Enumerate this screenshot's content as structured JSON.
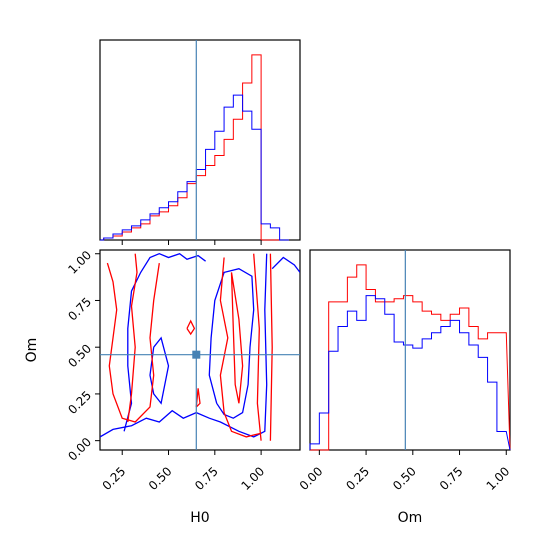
{
  "chart_data": [
    {
      "type": "histogram",
      "panel": "H0 marginal",
      "xlim": [
        0.13,
        1.21
      ],
      "truth": 0.65,
      "bins": [
        0.1,
        0.15,
        0.2,
        0.25,
        0.3,
        0.35,
        0.4,
        0.45,
        0.5,
        0.55,
        0.6,
        0.65,
        0.7,
        0.75,
        0.8,
        0.85,
        0.9,
        0.95,
        1.0,
        1.05,
        1.1,
        1.15
      ],
      "series": [
        {
          "color": "#ff0000",
          "values": [
            0,
            1,
            2,
            4,
            6,
            8,
            12,
            14,
            17,
            21,
            28,
            32,
            37,
            42,
            50,
            60,
            78,
            92,
            0,
            0,
            0
          ]
        },
        {
          "color": "#0000ff",
          "values": [
            0,
            1,
            3,
            5,
            7,
            10,
            13,
            16,
            19,
            24,
            29,
            35,
            45,
            54,
            66,
            72,
            64,
            55,
            8,
            6,
            0
          ]
        }
      ]
    },
    {
      "type": "contour",
      "panel": "H0 vs Om joint",
      "xlabel": "H0",
      "ylabel": "Om",
      "xlim": [
        0.13,
        1.21
      ],
      "ylim": [
        -0.05,
        1.02
      ],
      "xticks": [
        "0.25",
        "0.50",
        "0.75",
        "1.00"
      ],
      "yticks": [
        "0.00",
        "0.25",
        "0.50",
        "0.75",
        "1.00"
      ],
      "truth": [
        0.65,
        0.46
      ],
      "series": [
        {
          "color": "#0000ff",
          "contours": [
            [
              [
                0.13,
                0.02
              ],
              [
                0.2,
                0.06
              ],
              [
                0.3,
                0.08
              ],
              [
                0.38,
                0.12
              ],
              [
                0.45,
                0.1
              ],
              [
                0.52,
                0.16
              ],
              [
                0.58,
                0.12
              ],
              [
                0.65,
                0.15
              ],
              [
                0.72,
                0.12
              ],
              [
                0.78,
                0.1
              ],
              [
                0.88,
                0.05
              ],
              [
                0.96,
                0.02
              ],
              [
                1.02,
                0.05
              ],
              [
                1.03,
                0.3
              ],
              [
                1.02,
                0.7
              ],
              [
                1.03,
                1.0
              ]
            ],
            [
              [
                0.26,
                0.05
              ],
              [
                0.3,
                0.2
              ],
              [
                0.28,
                0.4
              ],
              [
                0.28,
                0.6
              ],
              [
                0.3,
                0.8
              ],
              [
                0.35,
                0.9
              ],
              [
                0.4,
                0.98
              ],
              [
                0.45,
                1.0
              ],
              [
                0.5,
                0.98
              ],
              [
                0.56,
                1.0
              ],
              [
                0.6,
                0.97
              ],
              [
                0.66,
                0.99
              ],
              [
                0.7,
                0.96
              ]
            ],
            [
              [
                0.42,
                0.5
              ],
              [
                0.46,
                0.55
              ],
              [
                0.5,
                0.4
              ],
              [
                0.46,
                0.2
              ],
              [
                0.42,
                0.25
              ],
              [
                0.4,
                0.35
              ],
              [
                0.42,
                0.5
              ]
            ],
            [
              [
                0.76,
                0.2
              ],
              [
                0.72,
                0.35
              ],
              [
                0.73,
                0.55
              ],
              [
                0.75,
                0.75
              ],
              [
                0.8,
                0.9
              ],
              [
                0.88,
                0.92
              ],
              [
                0.95,
                0.88
              ],
              [
                0.96,
                0.7
              ],
              [
                0.94,
                0.5
              ],
              [
                0.93,
                0.3
              ],
              [
                0.9,
                0.15
              ],
              [
                0.85,
                0.12
              ],
              [
                0.8,
                0.14
              ],
              [
                0.76,
                0.2
              ]
            ],
            [
              [
                1.06,
                0.92
              ],
              [
                1.12,
                0.98
              ],
              [
                1.18,
                0.94
              ],
              [
                1.21,
                0.9
              ]
            ]
          ]
        },
        {
          "color": "#ff0000",
          "contours": [
            [
              [
                0.17,
                0.95
              ],
              [
                0.2,
                0.85
              ],
              [
                0.22,
                0.7
              ],
              [
                0.2,
                0.55
              ],
              [
                0.18,
                0.4
              ],
              [
                0.2,
                0.25
              ],
              [
                0.25,
                0.12
              ],
              [
                0.32,
                0.1
              ],
              [
                0.4,
                0.18
              ],
              [
                0.42,
                0.35
              ],
              [
                0.4,
                0.55
              ],
              [
                0.42,
                0.75
              ],
              [
                0.45,
                0.95
              ]
            ],
            [
              [
                0.28,
                0.1
              ],
              [
                0.3,
                0.25
              ],
              [
                0.32,
                0.5
              ],
              [
                0.3,
                0.72
              ],
              [
                0.33,
                0.9
              ],
              [
                0.32,
                1.0
              ]
            ],
            [
              [
                0.8,
                0.98
              ],
              [
                0.78,
                0.75
              ],
              [
                0.82,
                0.55
              ],
              [
                0.78,
                0.35
              ],
              [
                0.8,
                0.15
              ],
              [
                0.84,
                0.05
              ],
              [
                0.92,
                0.02
              ],
              [
                1.0,
                0.04
              ]
            ],
            [
              [
                0.84,
                0.9
              ],
              [
                0.88,
                0.65
              ],
              [
                0.9,
                0.4
              ],
              [
                0.88,
                0.2
              ],
              [
                0.86,
                0.3
              ],
              [
                0.85,
                0.6
              ],
              [
                0.84,
                0.9
              ]
            ],
            [
              [
                0.6,
                0.6
              ],
              [
                0.62,
                0.64
              ],
              [
                0.64,
                0.6
              ],
              [
                0.62,
                0.57
              ],
              [
                0.6,
                0.6
              ]
            ],
            [
              [
                0.65,
                0.18
              ],
              [
                0.66,
                0.28
              ],
              [
                0.67,
                0.2
              ],
              [
                0.65,
                0.18
              ]
            ],
            [
              [
                0.96,
                1.0
              ],
              [
                0.99,
                0.6
              ],
              [
                0.98,
                0.2
              ],
              [
                1.0,
                0.0
              ]
            ],
            [
              [
                1.05,
                1.0
              ],
              [
                1.06,
                0.5
              ],
              [
                1.05,
                0.0
              ]
            ]
          ]
        }
      ]
    },
    {
      "type": "histogram",
      "panel": "Om marginal",
      "xlabel": "Om",
      "xlim": [
        -0.05,
        1.02
      ],
      "xticks": [
        "0.00",
        "0.25",
        "0.50",
        "0.75",
        "1.00"
      ],
      "truth": 0.46,
      "bins": [
        -0.05,
        0.0,
        0.05,
        0.1,
        0.15,
        0.2,
        0.25,
        0.3,
        0.35,
        0.4,
        0.45,
        0.5,
        0.55,
        0.6,
        0.65,
        0.7,
        0.75,
        0.8,
        0.85,
        0.9,
        0.95,
        1.0
      ],
      "series": [
        {
          "color": "#ff0000",
          "values": [
            0,
            0,
            48,
            48,
            56,
            60,
            52,
            48,
            48,
            49,
            50,
            48,
            45,
            44,
            42,
            44,
            46,
            40,
            36,
            38,
            38
          ]
        },
        {
          "color": "#0000ff",
          "values": [
            2,
            12,
            32,
            40,
            45,
            42,
            50,
            49,
            44,
            35,
            34,
            33,
            36,
            38,
            40,
            42,
            38,
            34,
            30,
            22,
            6
          ]
        }
      ]
    }
  ]
}
